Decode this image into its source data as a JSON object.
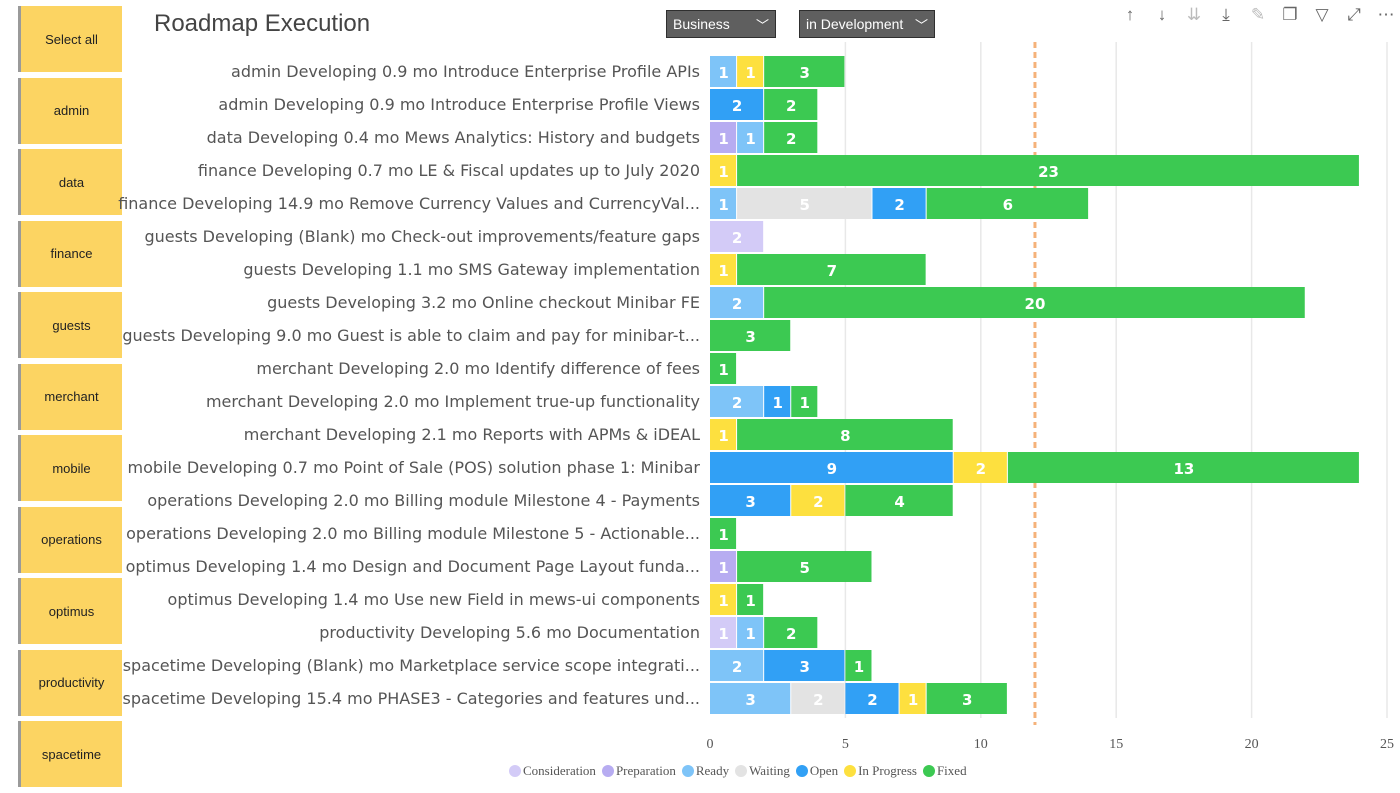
{
  "title": "Roadmap Execution",
  "slicer": {
    "items": [
      "Select all",
      "admin",
      "data",
      "finance",
      "guests",
      "merchant",
      "mobile",
      "operations",
      "optimus",
      "productivity",
      "spacetime"
    ]
  },
  "dropdowns": [
    {
      "value": "Business"
    },
    {
      "value": "in Development"
    }
  ],
  "toolbar": [
    {
      "name": "sort-ascending-icon",
      "glyph": "↑"
    },
    {
      "name": "sort-descending-icon",
      "glyph": "↓"
    },
    {
      "name": "expand-all-down-icon",
      "glyph": "⇊"
    },
    {
      "name": "drill-down-icon",
      "glyph": "⤓"
    },
    {
      "name": "pin-icon",
      "glyph": "✎"
    },
    {
      "name": "copy-icon",
      "glyph": "❐"
    },
    {
      "name": "filter-icon",
      "glyph": "▽"
    },
    {
      "name": "focus-mode-icon",
      "glyph": "⤢"
    },
    {
      "name": "more-options-icon",
      "glyph": "⋯"
    }
  ],
  "chart_data": {
    "type": "bar",
    "orientation": "horizontal",
    "stacked": true,
    "title": "Roadmap Execution",
    "xlim": [
      0,
      25
    ],
    "xticks": [
      0,
      5,
      10,
      15,
      20,
      25
    ],
    "grid": true,
    "reference_line": {
      "value": 12,
      "style": "dashed",
      "color": "#f5b27a"
    },
    "legend_position": "bottom",
    "series": [
      {
        "name": "Consideration",
        "color": "#d3cbf7"
      },
      {
        "name": "Preparation",
        "color": "#b7acf1"
      },
      {
        "name": "Ready",
        "color": "#7ec4f8"
      },
      {
        "name": "Waiting",
        "color": "#e3e3e3"
      },
      {
        "name": "Open",
        "color": "#31a0f5"
      },
      {
        "name": "In Progress",
        "color": "#fde03f"
      },
      {
        "name": "Fixed",
        "color": "#3cc952"
      }
    ],
    "categories": [
      {
        "label": "admin Developing 0.9 mo Introduce Enterprise Profile APIs",
        "values": {
          "Ready": 1,
          "In Progress": 1,
          "Fixed": 3
        }
      },
      {
        "label": "admin Developing 0.9 mo Introduce Enterprise Profile Views",
        "values": {
          "Open": 2,
          "Fixed": 2
        }
      },
      {
        "label": "data Developing 0.4 mo Mews Analytics: History and budgets",
        "values": {
          "Preparation": 1,
          "Ready": 1,
          "Fixed": 2
        }
      },
      {
        "label": "finance Developing 0.7 mo LE & Fiscal updates up to July 2020",
        "values": {
          "In Progress": 1,
          "Fixed": 23
        }
      },
      {
        "label": "finance Developing 14.9 mo Remove Currency Values and CurrencyVal...",
        "values": {
          "Ready": 1,
          "Waiting": 5,
          "Open": 2,
          "Fixed": 6
        }
      },
      {
        "label": "guests Developing (Blank) mo Check-out improvements/feature gaps",
        "values": {
          "Consideration": 2
        }
      },
      {
        "label": "guests Developing 1.1 mo SMS Gateway implementation",
        "values": {
          "In Progress": 1,
          "Fixed": 7
        }
      },
      {
        "label": "guests Developing 3.2 mo Online checkout Minibar FE",
        "values": {
          "Ready": 2,
          "Fixed": 20
        }
      },
      {
        "label": "guests Developing 9.0 mo Guest is able to claim and pay for minibar-t...",
        "values": {
          "Fixed": 3
        }
      },
      {
        "label": "merchant Developing 2.0 mo Identify difference of fees",
        "values": {
          "Fixed": 1
        }
      },
      {
        "label": "merchant Developing 2.0 mo Implement true-up functionality",
        "values": {
          "Ready": 2,
          "Open": 1,
          "Fixed": 1
        }
      },
      {
        "label": "merchant Developing 2.1 mo Reports with APMs & iDEAL",
        "values": {
          "In Progress": 1,
          "Fixed": 8
        }
      },
      {
        "label": "mobile Developing 0.7 mo Point of Sale (POS) solution phase 1: Minibar",
        "values": {
          "Open": 9,
          "In Progress": 2,
          "Fixed": 13
        }
      },
      {
        "label": "operations Developing 2.0 mo Billing module Milestone 4 - Payments",
        "values": {
          "Open": 3,
          "In Progress": 2,
          "Fixed": 4
        }
      },
      {
        "label": "operations Developing 2.0 mo Billing module Milestone 5 - Actionable...",
        "values": {
          "Fixed": 1
        }
      },
      {
        "label": "optimus Developing 1.4 mo Design and Document Page Layout funda...",
        "values": {
          "Preparation": 1,
          "Fixed": 5
        }
      },
      {
        "label": "optimus Developing 1.4 mo Use new Field in mews-ui components",
        "values": {
          "In Progress": 1,
          "Fixed": 1
        }
      },
      {
        "label": "productivity Developing 5.6 mo Documentation",
        "values": {
          "Consideration": 1,
          "Ready": 1,
          "Fixed": 2
        }
      },
      {
        "label": "spacetime Developing (Blank) mo Marketplace service scope integrati...",
        "values": {
          "Ready": 2,
          "Open": 3,
          "Fixed": 1
        }
      },
      {
        "label": "spacetime Developing 15.4 mo PHASE3 - Categories and features und...",
        "values": {
          "Ready": 3,
          "Waiting": 2,
          "Open": 2,
          "In Progress": 1,
          "Fixed": 3
        }
      }
    ]
  }
}
